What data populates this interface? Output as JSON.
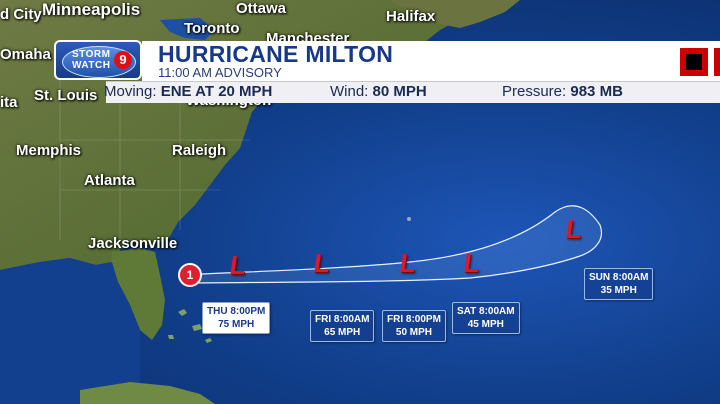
{
  "banner": {
    "logo_line1": "STORM",
    "logo_line2": "WATCH",
    "logo_number": "9",
    "title": "HURRICANE MILTON",
    "advisory": "11:00 AM ADVISORY",
    "moving_label": "Moving:",
    "moving_value": "ENE AT 20 MPH",
    "wind_label": "Wind:",
    "wind_value": "80 MPH",
    "pressure_label": "Pressure:",
    "pressure_value": "983 MB",
    "icon_color": "#cc0000"
  },
  "cities": {
    "minneapolis": "Minneapolis",
    "ottawa": "Ottawa",
    "toronto": "Toronto",
    "halifax": "Halifax",
    "manchester": "Manchester",
    "omaha": "Omaha",
    "st_louis": "St. Louis",
    "washington": "Washington",
    "memphis": "Memphis",
    "raleigh": "Raleigh",
    "atlanta": "Atlanta",
    "jacksonville": "Jacksonville",
    "d_city": "d City",
    "ita": "ita"
  },
  "track": {
    "current_marker": "1",
    "points": [
      {
        "time": "THU 8:00PM",
        "wind": "75 MPH"
      },
      {
        "time": "FRI 8:00AM",
        "wind": "65 MPH"
      },
      {
        "time": "FRI 8:00PM",
        "wind": "50 MPH"
      },
      {
        "time": "SAT 8:00AM",
        "wind": "45 MPH"
      },
      {
        "time": "SUN 8:00AM",
        "wind": "35 MPH"
      }
    ],
    "low_symbol": "L",
    "low_color": "#d91a2a"
  }
}
